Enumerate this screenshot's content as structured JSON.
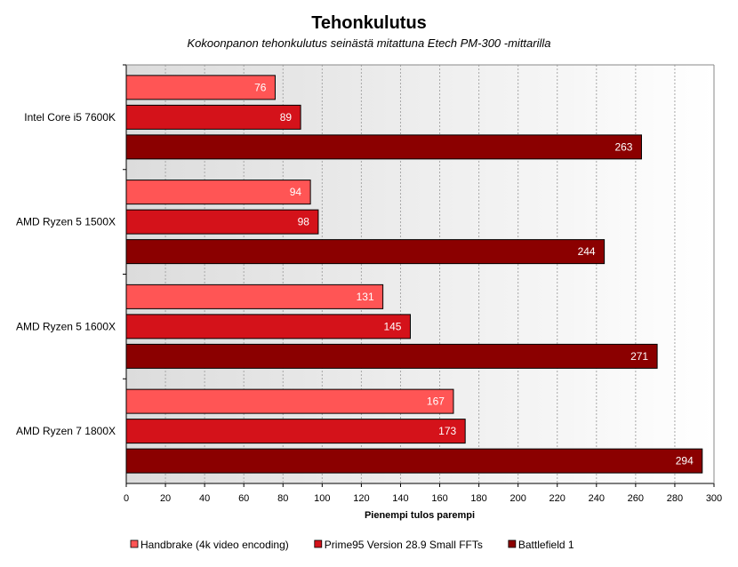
{
  "chart_data": {
    "type": "bar",
    "orientation": "horizontal",
    "title": "Tehonkulutus",
    "subtitle": "Kokoonpanon tehonkulutus seinästä mitattuna Etech PM-300 -mittarilla",
    "xlabel": "Pienempi tulos parempi",
    "ylabel": "",
    "xlim": [
      0,
      300
    ],
    "x_ticks": [
      0,
      20,
      40,
      60,
      80,
      100,
      120,
      140,
      160,
      180,
      200,
      220,
      240,
      260,
      280,
      300
    ],
    "grid": true,
    "legend_position": "bottom",
    "categories": [
      "Intel Core i5 7600K",
      "AMD Ryzen 5 1500X",
      "AMD Ryzen 5 1600X",
      "AMD Ryzen 7 1800X"
    ],
    "series": [
      {
        "name": "Handbrake (4k video encoding)",
        "color": "#ff5555",
        "values": [
          76,
          94,
          131,
          167
        ]
      },
      {
        "name": "Prime95 Version 28.9 Small FFTs",
        "color": "#d4121a",
        "values": [
          89,
          98,
          145,
          173
        ]
      },
      {
        "name": "Battlefield 1",
        "color": "#8b0000",
        "values": [
          263,
          244,
          271,
          294
        ]
      }
    ]
  }
}
